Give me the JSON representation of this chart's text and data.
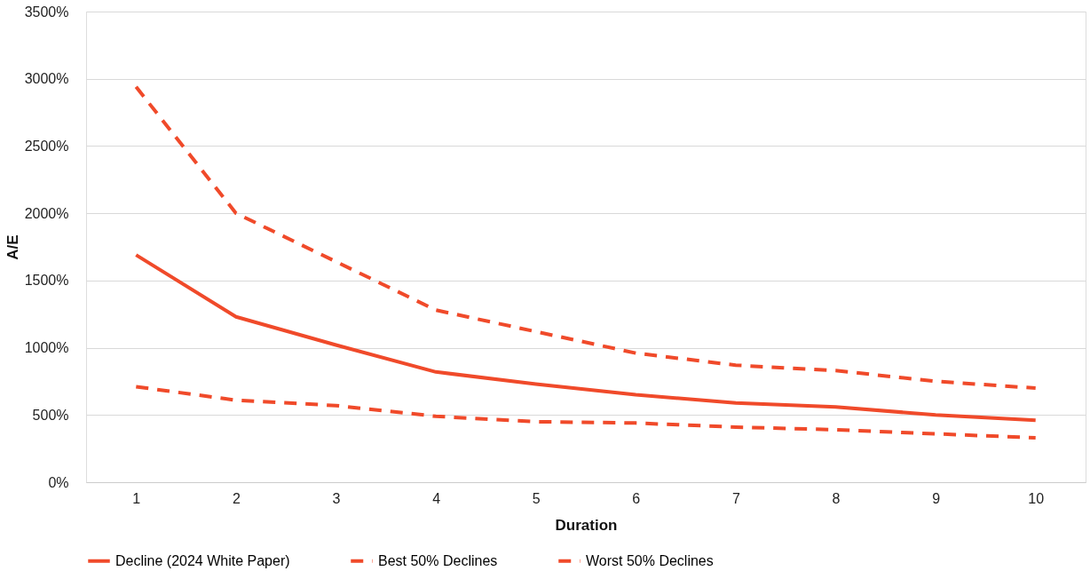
{
  "chart_data": {
    "type": "line",
    "xlabel": "Duration",
    "ylabel": "A/E",
    "categories": [
      "1",
      "2",
      "3",
      "4",
      "5",
      "6",
      "7",
      "8",
      "9",
      "10"
    ],
    "series": [
      {
        "name": "Decline (2024 White Paper)",
        "color": "#f04a2a",
        "line_style": "solid",
        "values": [
          1690,
          1230,
          1020,
          820,
          730,
          650,
          590,
          560,
          500,
          460
        ]
      },
      {
        "name": "Best 50% Declines",
        "color": "#f04a2a",
        "line_style": "dashed",
        "values": [
          2940,
          2000,
          1640,
          1280,
          1120,
          960,
          870,
          830,
          750,
          700
        ]
      },
      {
        "name": "Worst 50% Declines",
        "color": "#f04a2a",
        "line_style": "dashed",
        "values": [
          710,
          610,
          570,
          490,
          450,
          440,
          410,
          390,
          360,
          330
        ]
      }
    ],
    "ylim": [
      0,
      3500
    ],
    "yticks": [
      {
        "value": 0,
        "label": "0%"
      },
      {
        "value": 500,
        "label": "500%"
      },
      {
        "value": 1000,
        "label": "1000%"
      },
      {
        "value": 1500,
        "label": "1500%"
      },
      {
        "value": 2000,
        "label": "2000%"
      },
      {
        "value": 2500,
        "label": "2500%"
      },
      {
        "value": 3000,
        "label": "3000%"
      },
      {
        "value": 3500,
        "label": "3500%"
      }
    ],
    "grid": "y",
    "legend": "bottom",
    "marker": "none"
  }
}
